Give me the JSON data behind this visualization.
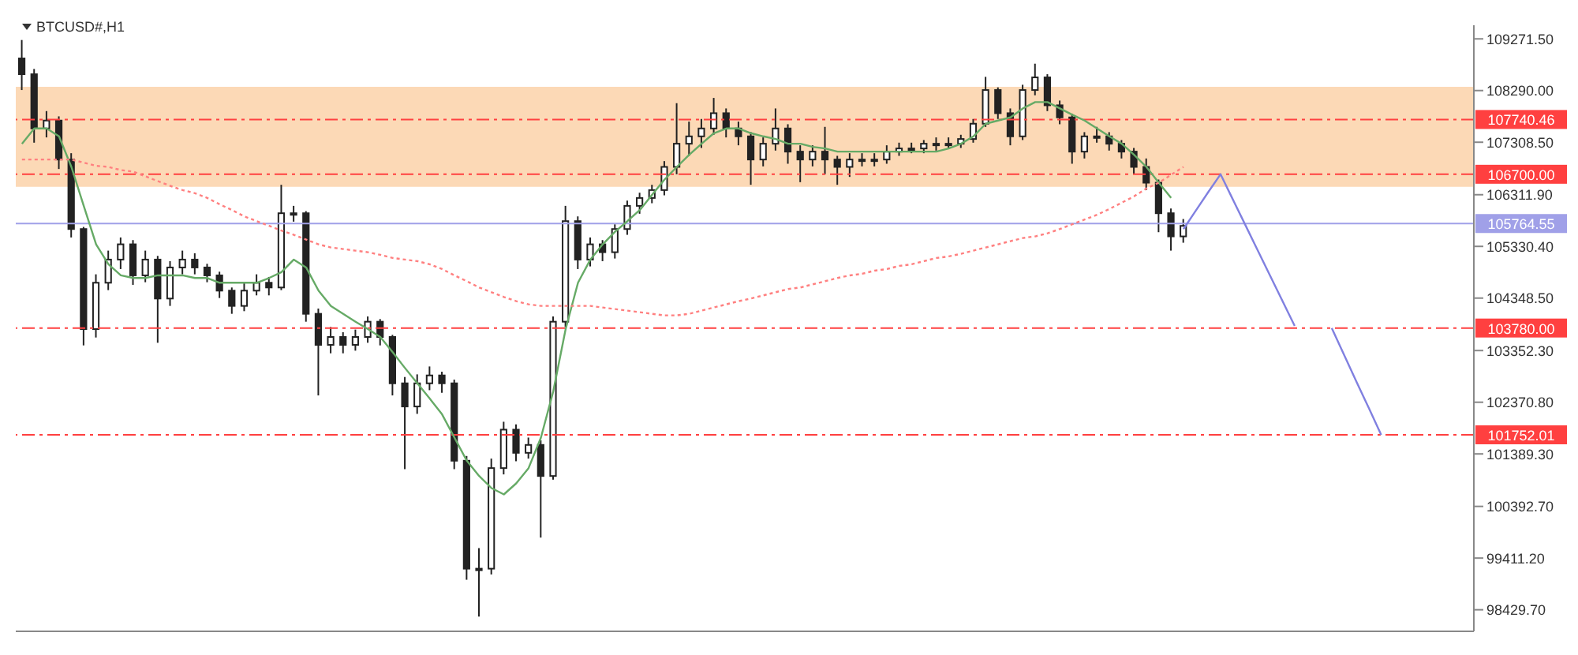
{
  "chart_data": {
    "type": "candlestick",
    "title": "BTCUSD#,H1",
    "color": "#222222",
    "categories": [
      null,
      null,
      null,
      null,
      null,
      null,
      null,
      null,
      null,
      null,
      null,
      null,
      null,
      null,
      null,
      null,
      null,
      null,
      null,
      null,
      null,
      null,
      null,
      null,
      null,
      null,
      null,
      null,
      null,
      null,
      null,
      null,
      null,
      null,
      null,
      null,
      null,
      null,
      null,
      null,
      null,
      null,
      null,
      null,
      null,
      null,
      null,
      null,
      null,
      null,
      null,
      null,
      null,
      null,
      null,
      null,
      null,
      null,
      null,
      null,
      null,
      null,
      null,
      null,
      null,
      null,
      null,
      null,
      null,
      null,
      null,
      null,
      null,
      null,
      null,
      null,
      null,
      null,
      null,
      null,
      null,
      null,
      null,
      null,
      null,
      null,
      null,
      null,
      null,
      null,
      null,
      null,
      null,
      null,
      null,
      null,
      null,
      null,
      null,
      null,
      null,
      null,
      null,
      null,
      null,
      null,
      null,
      null,
      null,
      null,
      null,
      null,
      null,
      null,
      null,
      null,
      null,
      null
    ],
    "ohlc": [
      [
        108900,
        109250,
        108300,
        108600
      ],
      [
        108600,
        108700,
        107300,
        107570
      ],
      [
        107570,
        107900,
        107400,
        107720
      ],
      [
        107720,
        107800,
        106800,
        106980
      ],
      [
        106980,
        107100,
        105500,
        105660
      ],
      [
        105660,
        105700,
        103450,
        103760
      ],
      [
        103760,
        104800,
        103600,
        104640
      ],
      [
        104640,
        105250,
        104500,
        105080
      ],
      [
        105080,
        105500,
        104900,
        105370
      ],
      [
        105370,
        105450,
        104600,
        104780
      ],
      [
        104780,
        105250,
        104650,
        105080
      ],
      [
        105080,
        105150,
        103500,
        104340
      ],
      [
        104340,
        105050,
        104200,
        104930
      ],
      [
        104930,
        105250,
        104800,
        105080
      ],
      [
        105080,
        105200,
        104800,
        104930
      ],
      [
        104930,
        105000,
        104650,
        104780
      ],
      [
        104780,
        104850,
        104350,
        104490
      ],
      [
        104490,
        104550,
        104050,
        104200
      ],
      [
        104200,
        104650,
        104100,
        104490
      ],
      [
        104490,
        104800,
        104400,
        104640
      ],
      [
        104640,
        104750,
        104400,
        104550
      ],
      [
        104550,
        106500,
        104500,
        105960
      ],
      [
        105960,
        106100,
        105800,
        105960
      ],
      [
        105960,
        106000,
        103900,
        104050
      ],
      [
        104050,
        104150,
        102500,
        103460
      ],
      [
        103460,
        103800,
        103300,
        103610
      ],
      [
        103610,
        103700,
        103300,
        103460
      ],
      [
        103460,
        103750,
        103350,
        103610
      ],
      [
        103610,
        104000,
        103500,
        103900
      ],
      [
        103900,
        103950,
        103450,
        103610
      ],
      [
        103610,
        103650,
        102500,
        102730
      ],
      [
        102730,
        102850,
        101100,
        102290
      ],
      [
        102290,
        102900,
        102150,
        102730
      ],
      [
        102730,
        103050,
        102600,
        102880
      ],
      [
        102880,
        102950,
        102550,
        102730
      ],
      [
        102730,
        102800,
        101100,
        101260
      ],
      [
        101260,
        101350,
        99000,
        99210
      ],
      [
        99210,
        99600,
        98300,
        99210
      ],
      [
        99210,
        101300,
        99100,
        101120
      ],
      [
        101120,
        102000,
        101000,
        101850
      ],
      [
        101850,
        101950,
        101250,
        101410
      ],
      [
        101410,
        101700,
        101300,
        101560
      ],
      [
        101560,
        101650,
        99800,
        100970
      ],
      [
        100970,
        104000,
        100900,
        103900
      ],
      [
        103900,
        106100,
        103800,
        105810
      ],
      [
        105810,
        105900,
        104900,
        105080
      ],
      [
        105080,
        105500,
        104950,
        105370
      ],
      [
        105370,
        105450,
        105050,
        105220
      ],
      [
        105220,
        105750,
        105100,
        105660
      ],
      [
        105660,
        106200,
        105550,
        106100
      ],
      [
        106100,
        106350,
        105950,
        106250
      ],
      [
        106250,
        106500,
        106150,
        106400
      ],
      [
        106400,
        106950,
        106300,
        106840
      ],
      [
        106840,
        108050,
        106700,
        107280
      ],
      [
        107280,
        107700,
        107050,
        107420
      ],
      [
        107420,
        107750,
        107200,
        107570
      ],
      [
        107570,
        108150,
        107450,
        107860
      ],
      [
        107860,
        107950,
        107400,
        107570
      ],
      [
        107570,
        107700,
        107250,
        107420
      ],
      [
        107420,
        107500,
        106500,
        106980
      ],
      [
        106980,
        107400,
        106850,
        107280
      ],
      [
        107280,
        107950,
        107150,
        107570
      ],
      [
        107570,
        107650,
        106900,
        107130
      ],
      [
        107130,
        107250,
        106550,
        106980
      ],
      [
        106980,
        107250,
        106850,
        107130
      ],
      [
        107130,
        107600,
        106700,
        106980
      ],
      [
        106980,
        107050,
        106500,
        106840
      ],
      [
        106840,
        107100,
        106650,
        106980
      ],
      [
        106980,
        107100,
        106850,
        106980
      ],
      [
        106980,
        107100,
        106850,
        106980
      ],
      [
        106980,
        107250,
        106900,
        107130
      ],
      [
        107130,
        107300,
        107050,
        107190
      ],
      [
        107190,
        107300,
        107100,
        107190
      ],
      [
        107190,
        107350,
        107100,
        107280
      ],
      [
        107280,
        107400,
        107150,
        107280
      ],
      [
        107280,
        107400,
        107200,
        107280
      ],
      [
        107280,
        107450,
        107200,
        107370
      ],
      [
        107370,
        107750,
        107300,
        107660
      ],
      [
        107660,
        108550,
        107600,
        108300
      ],
      [
        108300,
        108350,
        107750,
        107860
      ],
      [
        107860,
        107950,
        107250,
        107420
      ],
      [
        107420,
        108400,
        107350,
        108300
      ],
      [
        108300,
        108800,
        108200,
        108540
      ],
      [
        108540,
        108600,
        107900,
        108010
      ],
      [
        108010,
        108100,
        107650,
        107780
      ],
      [
        107780,
        107850,
        106900,
        107130
      ],
      [
        107130,
        107500,
        107000,
        107420
      ],
      [
        107420,
        107600,
        107300,
        107420
      ],
      [
        107420,
        107500,
        107150,
        107280
      ],
      [
        107280,
        107350,
        107000,
        107130
      ],
      [
        107130,
        107200,
        106700,
        106840
      ],
      [
        106840,
        107000,
        106400,
        106540
      ],
      [
        106540,
        106600,
        105600,
        105960
      ],
      [
        105960,
        106050,
        105250,
        105520
      ],
      [
        105520,
        105850,
        105400,
        105720
      ],
      null,
      null,
      null,
      null,
      null,
      null,
      null,
      null,
      null,
      null,
      null,
      null,
      null,
      null,
      null,
      null,
      null,
      null,
      null,
      null,
      null,
      null,
      null
    ],
    "series": [
      {
        "type": "line",
        "color": "#66aa66",
        "line_style": "solid",
        "values": [
          107280,
          107570,
          107570,
          107420,
          106840,
          106100,
          105370,
          104990,
          104780,
          104730,
          104730,
          104780,
          104780,
          104780,
          104730,
          104730,
          104640,
          104640,
          104640,
          104640,
          104730,
          104840,
          105080,
          104930,
          104490,
          104200,
          104050,
          103900,
          103760,
          103610,
          103320,
          103020,
          102730,
          102440,
          102140,
          101700,
          101260,
          100970,
          100740,
          100620,
          100830,
          101120,
          101700,
          102580,
          103760,
          104640,
          105080,
          105370,
          105610,
          105810,
          106020,
          106310,
          106600,
          106840,
          107070,
          107280,
          107480,
          107570,
          107570,
          107480,
          107420,
          107370,
          107280,
          107280,
          107220,
          107190,
          107130,
          107130,
          107130,
          107130,
          107130,
          107130,
          107130,
          107130,
          107130,
          107190,
          107280,
          107420,
          107660,
          107720,
          107780,
          107950,
          108070,
          108070,
          107950,
          107830,
          107720,
          107570,
          107420,
          107280,
          107070,
          106840,
          106540,
          106250,
          null,
          null,
          null,
          null,
          null,
          null,
          null,
          null,
          null,
          null,
          null,
          null,
          null,
          null,
          null,
          null,
          null,
          null,
          null,
          null,
          null,
          null,
          null,
          null
        ]
      },
      {
        "type": "line",
        "color": "#ff8080",
        "line_style": "dotted",
        "values": [
          106980,
          106980,
          106980,
          106980,
          106980,
          106920,
          106860,
          106840,
          106780,
          106750,
          106660,
          106570,
          106480,
          106400,
          106340,
          106250,
          106130,
          106020,
          105900,
          105810,
          105720,
          105630,
          105550,
          105460,
          105370,
          105310,
          105280,
          105250,
          105220,
          105170,
          105110,
          105080,
          105050,
          104990,
          104900,
          104780,
          104670,
          104550,
          104460,
          104370,
          104290,
          104230,
          104200,
          104200,
          104200,
          104200,
          104200,
          104170,
          104140,
          104110,
          104080,
          104050,
          104020,
          104020,
          104050,
          104110,
          104170,
          104230,
          104290,
          104340,
          104400,
          104460,
          104520,
          104550,
          104610,
          104670,
          104730,
          104780,
          104810,
          104870,
          104900,
          104960,
          104990,
          105050,
          105110,
          105140,
          105190,
          105250,
          105310,
          105370,
          105430,
          105490,
          105520,
          105580,
          105660,
          105750,
          105840,
          105930,
          106040,
          106160,
          106280,
          106430,
          106540,
          106690,
          106840,
          null,
          null,
          null,
          null,
          null,
          null,
          null,
          null,
          null,
          null,
          null,
          null,
          null,
          null,
          null,
          null,
          null,
          null,
          null,
          null,
          null,
          null,
          null
        ]
      },
      {
        "type": "line",
        "color": "#8080e0",
        "line_style": "solid",
        "values": [
          null,
          null,
          null,
          null,
          null,
          null,
          null,
          null,
          null,
          null,
          null,
          null,
          null,
          null,
          null,
          null,
          null,
          null,
          null,
          null,
          null,
          null,
          null,
          null,
          null,
          null,
          null,
          null,
          null,
          null,
          null,
          null,
          null,
          null,
          null,
          null,
          null,
          null,
          null,
          null,
          null,
          null,
          null,
          null,
          null,
          null,
          null,
          null,
          null,
          null,
          null,
          null,
          null,
          null,
          null,
          null,
          null,
          null,
          null,
          null,
          null,
          null,
          null,
          null,
          null,
          null,
          null,
          null,
          null,
          null,
          null,
          null,
          null,
          null,
          null,
          null,
          null,
          null,
          null,
          null,
          null,
          null,
          null,
          null,
          null,
          null,
          null,
          null,
          null,
          null,
          null,
          null,
          null,
          null,
          105660,
          106010,
          106360,
          106700,
          106220,
          105740,
          105260,
          104780,
          104300,
          103820,
          null,
          null,
          103780,
          103270,
          102760,
          102260,
          101750,
          null,
          null,
          null,
          null,
          null,
          null,
          null
        ]
      }
    ],
    "ylim": [
      98020,
      109530
    ],
    "yticks": [
      {
        "value": 98429.7,
        "label": "98429.70"
      },
      {
        "value": 99411.2,
        "label": "99411.20"
      },
      {
        "value": 100392.7,
        "label": "100392.70"
      },
      {
        "value": 101389.3,
        "label": "101389.30"
      },
      {
        "value": 102370.8,
        "label": "102370.80"
      },
      {
        "value": 103352.3,
        "label": "103352.30"
      },
      {
        "value": 104348.5,
        "label": "104348.50"
      },
      {
        "value": 105330.4,
        "label": "105330.40"
      },
      {
        "value": 106311.9,
        "label": "106311.90"
      },
      {
        "value": 107308.5,
        "label": "107308.50"
      },
      {
        "value": 108290,
        "label": "108290.00"
      },
      {
        "value": 109271.5,
        "label": "109271.50"
      }
    ],
    "ref_lines": [
      {
        "axis": "y",
        "value": 107740.46,
        "label": "107740.46",
        "color": "#ff4040",
        "line_style": "dashed"
      },
      {
        "axis": "y",
        "value": 106700,
        "label": "106700.00",
        "color": "#ff4040",
        "line_style": "dashed"
      },
      {
        "axis": "y",
        "value": 105764.55,
        "label": "105764.55",
        "color": "#a0a0e8",
        "line_style": "solid"
      },
      {
        "axis": "y",
        "value": 103780,
        "label": "103780.00",
        "color": "#ff4040",
        "line_style": "dashed"
      },
      {
        "axis": "y",
        "value": 101752.01,
        "label": "101752.01",
        "color": "#ff4040",
        "line_style": "dashed"
      }
    ],
    "bands": [
      {
        "axis": "y",
        "from": 106460,
        "to": 108360,
        "color": "#fbc58f"
      }
    ],
    "tick_labels": "y",
    "grid": false
  }
}
